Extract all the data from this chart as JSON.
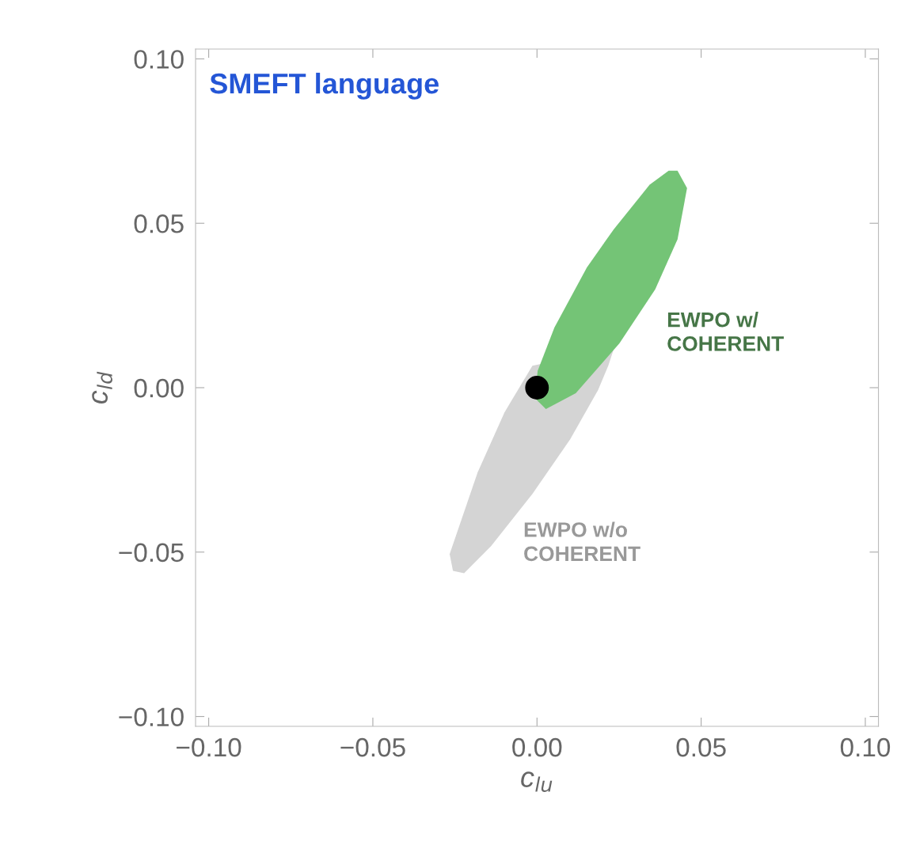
{
  "chart_data": {
    "type": "area",
    "title": "SMEFT language",
    "xlabel": "c$_{lu}$",
    "ylabel": "c$_{ld}$",
    "xlim": [
      -0.104,
      0.104
    ],
    "ylim": [
      -0.103,
      0.103
    ],
    "xticks": [
      {
        "value": -0.1,
        "label": "−0.10"
      },
      {
        "value": -0.05,
        "label": "−0.05"
      },
      {
        "value": 0,
        "label": "0.00"
      },
      {
        "value": 0.05,
        "label": "0.05"
      },
      {
        "value": 0.1,
        "label": "0.10"
      }
    ],
    "yticks": [
      {
        "value": -0.1,
        "label": "−0.10"
      },
      {
        "value": -0.05,
        "label": "−0.05"
      },
      {
        "value": 0,
        "label": "0.00"
      },
      {
        "value": 0.05,
        "label": "0.05"
      },
      {
        "value": 0.1,
        "label": "0.10"
      }
    ],
    "grid": false,
    "series": [
      {
        "name": "EWPO w/o\nCOHERENT",
        "color": "#d4d4d4",
        "x": [
          -0.0256,
          -0.0266,
          -0.0181,
          -0.0099,
          -0.0014,
          0.0234,
          0.0217,
          0.0186,
          0.0101,
          -0.0014,
          -0.014,
          -0.0222
        ],
        "values": [
          -0.0557,
          -0.0506,
          -0.0258,
          -0.0075,
          0.0067,
          0.0118,
          0.0067,
          -0.0007,
          -0.0157,
          -0.0323,
          -0.0482,
          -0.0564
        ]
      },
      {
        "name": "EWPO w/\nCOHERENT",
        "color": "#74c476",
        "x": [
          0.0428,
          0.0457,
          0.0428,
          0.036,
          0.0251,
          0.0118,
          0.0027,
          -0.0007,
          0.0002,
          0.0053,
          0.0152,
          0.0234,
          0.0343,
          0.0401
        ],
        "values": [
          0.066,
          0.0607,
          0.0451,
          0.0299,
          0.0135,
          -0.0017,
          -0.0065,
          -0.0031,
          0.0051,
          0.0183,
          0.0366,
          0.0482,
          0.0617,
          0.066
        ]
      },
      {
        "type": "scatter",
        "color": "#000000",
        "marker": "circle",
        "x": [
          0
        ],
        "values": [
          0
        ]
      }
    ]
  }
}
